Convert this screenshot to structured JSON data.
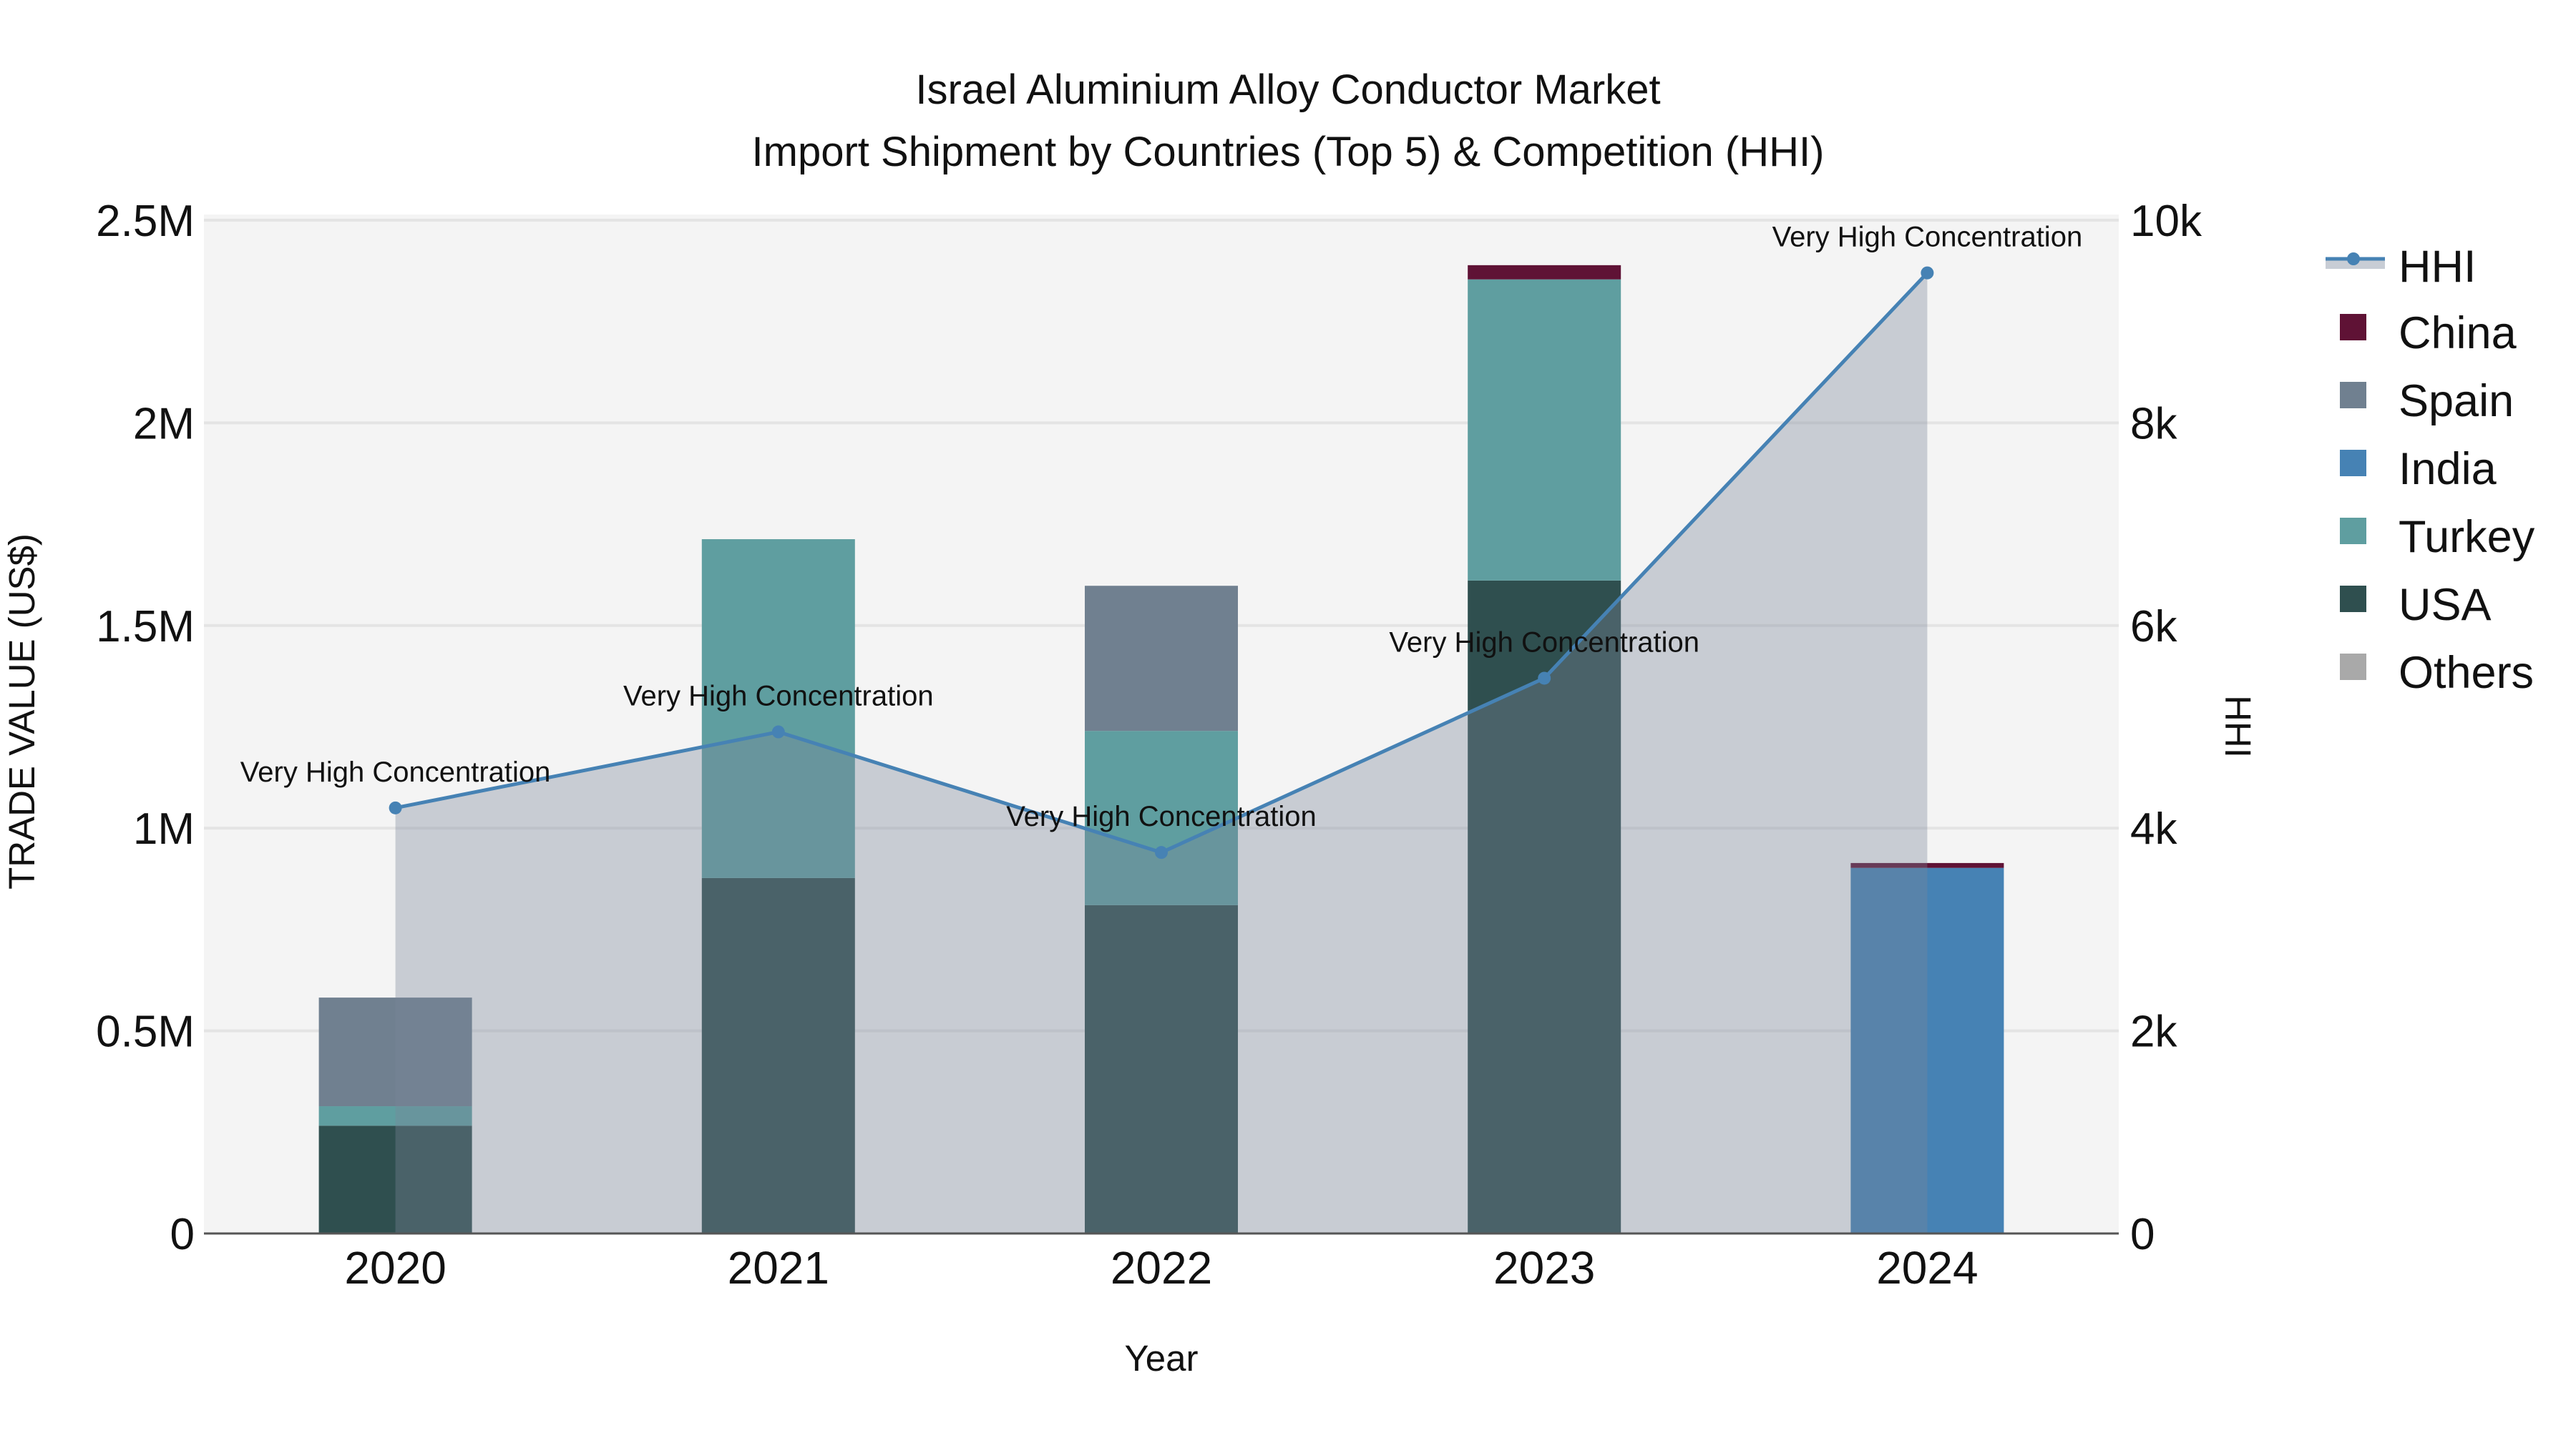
{
  "title": {
    "line1": "Israel Aluminium Alloy Conductor Market",
    "line2": "Import Shipment by Countries (Top 5) & Competition (HHI)"
  },
  "axes": {
    "x_title": "Year",
    "y_left_title": "TRADE VALUE (US$)",
    "y_right_title": "HHI",
    "y_left_ticks": [
      "0",
      "0.5M",
      "1M",
      "1.5M",
      "2M",
      "2.5M"
    ],
    "y_left_tick_values": [
      0,
      0.5,
      1,
      1.5,
      2,
      2.5
    ],
    "y_right_ticks": [
      "0",
      "2k",
      "4k",
      "6k",
      "8k",
      "10k"
    ],
    "y_right_tick_values": [
      0,
      2000,
      4000,
      6000,
      8000,
      10000
    ]
  },
  "legend": {
    "items": [
      {
        "label": "HHI",
        "type": "line",
        "color": "#4682b4"
      },
      {
        "label": "China",
        "type": "bar",
        "color": "#5f1235"
      },
      {
        "label": "Spain",
        "type": "bar",
        "color": "#708090"
      },
      {
        "label": "India",
        "type": "bar",
        "color": "#4682b4"
      },
      {
        "label": "Turkey",
        "type": "bar",
        "color": "#5f9ea0"
      },
      {
        "label": "USA",
        "type": "bar",
        "color": "#2f4f4f"
      },
      {
        "label": "Others",
        "type": "bar",
        "color": "#a9a9a9"
      }
    ]
  },
  "colors": {
    "plot_bg": "#f4f4f4",
    "grid": "#e4e4e4",
    "hhi_line": "#4682b4",
    "hhi_area": "#7a8699",
    "axis_line": "#555555"
  },
  "chart_data": {
    "type": "bar",
    "stacked": true,
    "title": "Israel Aluminium Alloy Conductor Market — Import Shipment by Countries (Top 5) & Competition (HHI)",
    "xlabel": "Year",
    "ylabel": "TRADE VALUE (US$)",
    "y2label": "HHI",
    "categories": [
      "2020",
      "2021",
      "2022",
      "2023",
      "2024"
    ],
    "ylim": [
      0,
      2514000
    ],
    "y2lim": [
      0,
      10056
    ],
    "grid": true,
    "legend_position": "right",
    "series": [
      {
        "name": "USA",
        "type": "bar",
        "color": "#2f4f4f",
        "values": [
          266000,
          877000,
          810000,
          1611000,
          0
        ]
      },
      {
        "name": "Turkey",
        "type": "bar",
        "color": "#5f9ea0",
        "values": [
          48000,
          836000,
          430000,
          743000,
          0
        ]
      },
      {
        "name": "India",
        "type": "bar",
        "color": "#4682b4",
        "values": [
          0,
          0,
          0,
          0,
          902000
        ]
      },
      {
        "name": "Spain",
        "type": "bar",
        "color": "#708090",
        "values": [
          268000,
          0,
          358000,
          0,
          0
        ]
      },
      {
        "name": "China",
        "type": "bar",
        "color": "#5f1235",
        "values": [
          0,
          0,
          0,
          35000,
          12000
        ]
      },
      {
        "name": "Others",
        "type": "bar",
        "color": "#a9a9a9",
        "values": [
          0,
          0,
          0,
          0,
          0
        ]
      },
      {
        "name": "HHI",
        "type": "line+area",
        "axis": "right",
        "color": "#4682b4",
        "values": [
          4200,
          4950,
          3760,
          5480,
          9480
        ]
      }
    ],
    "annotations": [
      {
        "x": "2020",
        "text": "Very High Concentration"
      },
      {
        "x": "2021",
        "text": "Very High Concentration"
      },
      {
        "x": "2022",
        "text": "Very High Concentration"
      },
      {
        "x": "2023",
        "text": "Very High Concentration"
      },
      {
        "x": "2024",
        "text": "Very High Concentration"
      }
    ]
  }
}
